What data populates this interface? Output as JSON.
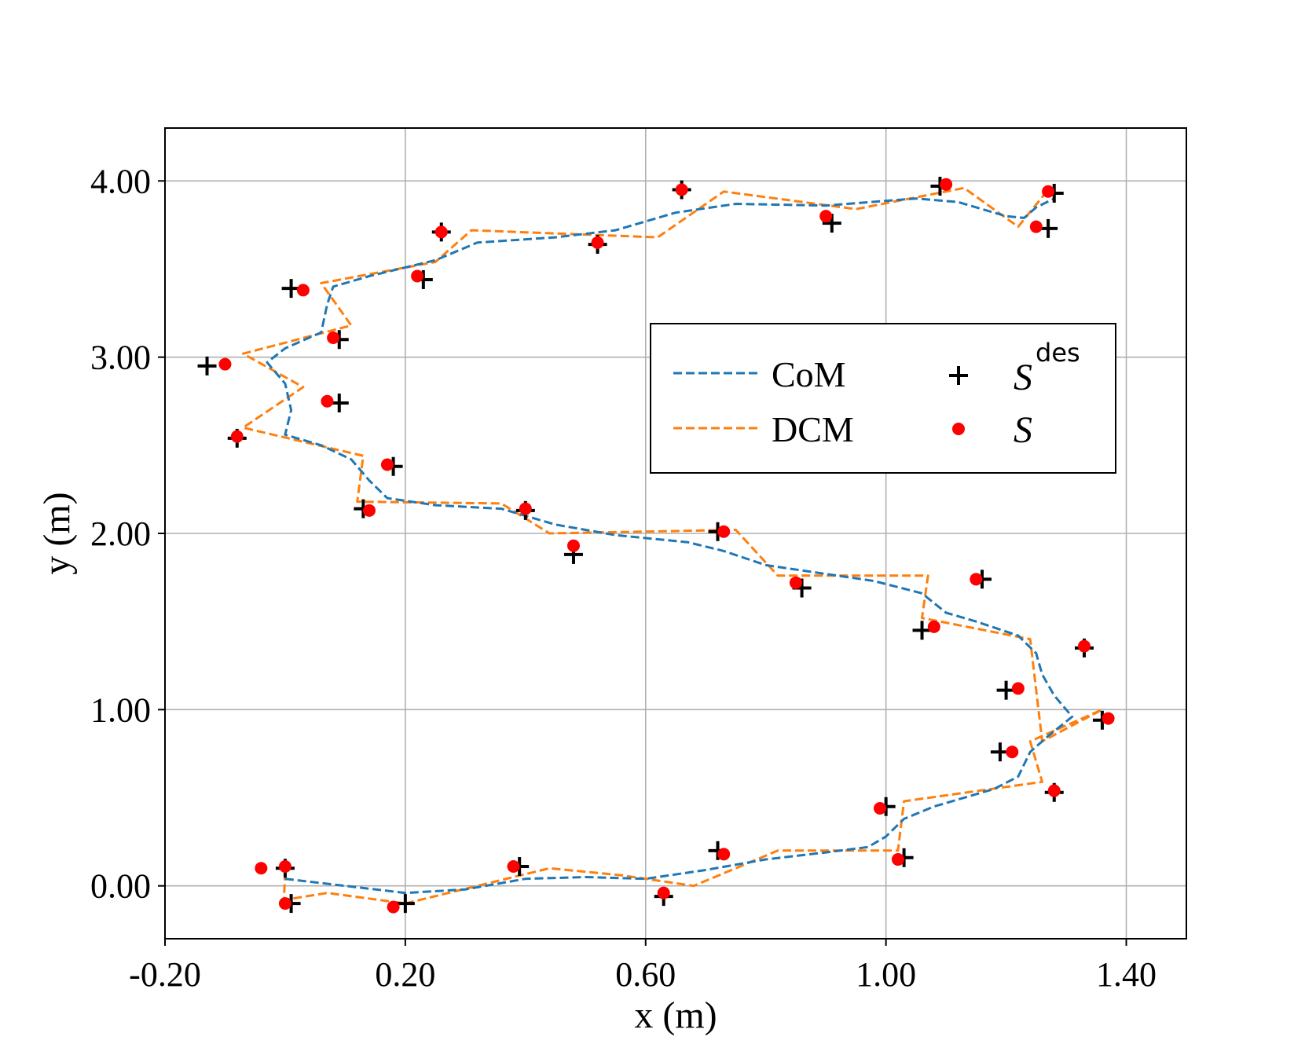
{
  "chart_data": {
    "type": "line",
    "xlabel": "x (m)",
    "ylabel": "y (m)",
    "xlim": [
      -0.2,
      1.5
    ],
    "ylim": [
      -0.3,
      4.3
    ],
    "xticks": [
      -0.2,
      0.2,
      0.6,
      1.0,
      1.4
    ],
    "xtick_labels": [
      "-0.20",
      "0.20",
      "0.60",
      "1.00",
      "1.40"
    ],
    "yticks": [
      0.0,
      1.0,
      2.0,
      3.0,
      4.0
    ],
    "ytick_labels": [
      "0.00",
      "1.00",
      "2.00",
      "3.00",
      "4.00"
    ],
    "grid": true,
    "legend_position": "center-right",
    "colors": {
      "com": "#1f77b4",
      "dcm": "#ff7f0e",
      "s_des": "#000000",
      "s": "#ff0000"
    },
    "series": [
      {
        "name": "CoM",
        "key": "com",
        "style": "dashed-line",
        "points": [
          [
            0.0,
            0.04
          ],
          [
            0.1,
            0.0
          ],
          [
            0.2,
            -0.04
          ],
          [
            0.3,
            -0.02
          ],
          [
            0.4,
            0.04
          ],
          [
            0.5,
            0.05
          ],
          [
            0.6,
            0.04
          ],
          [
            0.7,
            0.09
          ],
          [
            0.8,
            0.15
          ],
          [
            0.9,
            0.19
          ],
          [
            0.97,
            0.22
          ],
          [
            1.0,
            0.28
          ],
          [
            1.03,
            0.38
          ],
          [
            1.08,
            0.45
          ],
          [
            1.18,
            0.55
          ],
          [
            1.22,
            0.62
          ],
          [
            1.24,
            0.76
          ],
          [
            1.27,
            0.85
          ],
          [
            1.31,
            0.96
          ],
          [
            1.28,
            1.08
          ],
          [
            1.26,
            1.2
          ],
          [
            1.25,
            1.32
          ],
          [
            1.22,
            1.42
          ],
          [
            1.15,
            1.5
          ],
          [
            1.1,
            1.55
          ],
          [
            1.06,
            1.66
          ],
          [
            0.98,
            1.73
          ],
          [
            0.88,
            1.78
          ],
          [
            0.8,
            1.82
          ],
          [
            0.73,
            1.9
          ],
          [
            0.67,
            1.95
          ],
          [
            0.55,
            1.99
          ],
          [
            0.45,
            2.05
          ],
          [
            0.36,
            2.14
          ],
          [
            0.25,
            2.16
          ],
          [
            0.17,
            2.2
          ],
          [
            0.14,
            2.3
          ],
          [
            0.11,
            2.42
          ],
          [
            0.06,
            2.5
          ],
          [
            0.0,
            2.56
          ],
          [
            0.01,
            2.7
          ],
          [
            0.0,
            2.85
          ],
          [
            -0.03,
            2.97
          ],
          [
            0.0,
            3.05
          ],
          [
            0.06,
            3.14
          ],
          [
            0.07,
            3.3
          ],
          [
            0.08,
            3.4
          ],
          [
            0.14,
            3.46
          ],
          [
            0.25,
            3.55
          ],
          [
            0.32,
            3.65
          ],
          [
            0.45,
            3.68
          ],
          [
            0.55,
            3.72
          ],
          [
            0.65,
            3.82
          ],
          [
            0.75,
            3.87
          ],
          [
            0.9,
            3.86
          ],
          [
            1.05,
            3.9
          ],
          [
            1.12,
            3.88
          ],
          [
            1.2,
            3.8
          ],
          [
            1.23,
            3.79
          ],
          [
            1.25,
            3.85
          ],
          [
            1.28,
            3.9
          ]
        ]
      },
      {
        "name": "DCM",
        "key": "dcm",
        "style": "dashed-line",
        "points": [
          [
            0.0,
            0.08
          ],
          [
            -0.002,
            -0.08
          ],
          [
            0.07,
            -0.04
          ],
          [
            0.2,
            -0.1
          ],
          [
            0.32,
            0.0
          ],
          [
            0.44,
            0.1
          ],
          [
            0.56,
            0.06
          ],
          [
            0.68,
            0.0
          ],
          [
            0.82,
            0.2
          ],
          [
            1.02,
            0.2
          ],
          [
            1.03,
            0.48
          ],
          [
            1.26,
            0.59
          ],
          [
            1.24,
            0.82
          ],
          [
            1.36,
            1.0
          ],
          [
            1.26,
            0.82
          ],
          [
            1.24,
            1.4
          ],
          [
            1.06,
            1.52
          ],
          [
            1.07,
            1.76
          ],
          [
            0.82,
            1.76
          ],
          [
            0.75,
            2.02
          ],
          [
            0.44,
            2.0
          ],
          [
            0.36,
            2.17
          ],
          [
            0.12,
            2.18
          ],
          [
            0.13,
            2.44
          ],
          [
            -0.07,
            2.6
          ],
          [
            0.03,
            2.83
          ],
          [
            -0.07,
            3.02
          ],
          [
            0.11,
            3.18
          ],
          [
            0.06,
            3.42
          ],
          [
            0.25,
            3.54
          ],
          [
            0.31,
            3.72
          ],
          [
            0.62,
            3.68
          ],
          [
            0.73,
            3.94
          ],
          [
            0.95,
            3.84
          ],
          [
            1.13,
            3.96
          ],
          [
            1.22,
            3.74
          ],
          [
            1.27,
            3.95
          ]
        ]
      },
      {
        "name": "S^des",
        "key": "s_des",
        "style": "plus",
        "points": [
          [
            -0.13,
            2.95
          ],
          [
            -0.08,
            2.54
          ],
          [
            0.01,
            3.39
          ],
          [
            0.09,
            3.1
          ],
          [
            0.09,
            2.74
          ],
          [
            0.13,
            2.14
          ],
          [
            0.18,
            2.38
          ],
          [
            0.23,
            3.44
          ],
          [
            0.26,
            3.71
          ],
          [
            0.4,
            2.13
          ],
          [
            0.52,
            3.64
          ],
          [
            0.48,
            1.88
          ],
          [
            0.66,
            3.95
          ],
          [
            0.72,
            2.01
          ],
          [
            0.86,
            1.69
          ],
          [
            0.91,
            3.76
          ],
          [
            1.09,
            3.97
          ],
          [
            1.16,
            1.74
          ],
          [
            1.06,
            1.45
          ],
          [
            1.2,
            1.11
          ],
          [
            1.19,
            0.76
          ],
          [
            1.27,
            3.73
          ],
          [
            1.28,
            3.93
          ],
          [
            1.33,
            1.35
          ],
          [
            1.36,
            0.94
          ],
          [
            1.28,
            0.53
          ],
          [
            1.0,
            0.45
          ],
          [
            1.03,
            0.16
          ],
          [
            0.72,
            0.2
          ],
          [
            0.63,
            -0.06
          ],
          [
            0.39,
            0.11
          ],
          [
            0.2,
            -0.1
          ],
          [
            0.01,
            -0.1
          ],
          [
            0.0,
            0.1
          ]
        ]
      },
      {
        "name": "S",
        "key": "s",
        "style": "dot",
        "points": [
          [
            -0.1,
            2.96
          ],
          [
            -0.08,
            2.55
          ],
          [
            0.03,
            3.38
          ],
          [
            0.08,
            3.11
          ],
          [
            0.07,
            2.75
          ],
          [
            0.14,
            2.13
          ],
          [
            0.17,
            2.39
          ],
          [
            0.22,
            3.46
          ],
          [
            0.26,
            3.71
          ],
          [
            0.4,
            2.14
          ],
          [
            0.52,
            3.65
          ],
          [
            0.48,
            1.93
          ],
          [
            0.66,
            3.95
          ],
          [
            0.73,
            2.01
          ],
          [
            0.85,
            1.72
          ],
          [
            0.9,
            3.8
          ],
          [
            1.1,
            3.98
          ],
          [
            1.15,
            1.74
          ],
          [
            1.08,
            1.47
          ],
          [
            1.22,
            1.12
          ],
          [
            1.21,
            0.76
          ],
          [
            1.25,
            3.74
          ],
          [
            1.27,
            3.94
          ],
          [
            1.33,
            1.36
          ],
          [
            1.37,
            0.95
          ],
          [
            1.28,
            0.54
          ],
          [
            0.99,
            0.44
          ],
          [
            1.02,
            0.15
          ],
          [
            0.73,
            0.18
          ],
          [
            0.63,
            -0.04
          ],
          [
            0.38,
            0.11
          ],
          [
            0.18,
            -0.12
          ],
          [
            0.0,
            -0.1
          ],
          [
            0.0,
            0.11
          ],
          [
            -0.04,
            0.1
          ]
        ]
      }
    ],
    "legend": [
      {
        "key": "com",
        "label": "CoM",
        "style": "dashed-line"
      },
      {
        "key": "dcm",
        "label": "DCM",
        "style": "dashed-line"
      },
      {
        "key": "s_des",
        "label": "S",
        "superscript": "des",
        "style": "plus"
      },
      {
        "key": "s",
        "label": "S",
        "superscript": "",
        "style": "dot"
      }
    ]
  }
}
